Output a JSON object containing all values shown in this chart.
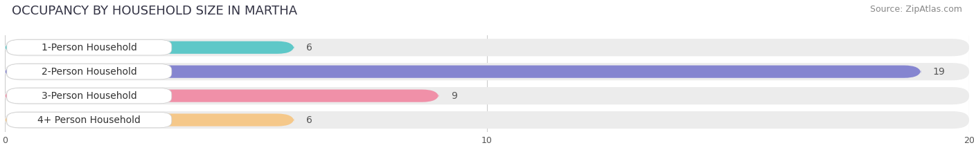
{
  "title": "OCCUPANCY BY HOUSEHOLD SIZE IN MARTHA",
  "source": "Source: ZipAtlas.com",
  "categories": [
    "1-Person Household",
    "2-Person Household",
    "3-Person Household",
    "4+ Person Household"
  ],
  "values": [
    6,
    19,
    9,
    6
  ],
  "bar_colors": [
    "#5ec8c8",
    "#8585d0",
    "#f090a8",
    "#f5c88a"
  ],
  "bar_bg_colors": [
    "#ececec",
    "#ececec",
    "#ececec",
    "#ececec"
  ],
  "xlim": [
    0,
    20
  ],
  "xticks": [
    0,
    10,
    20
  ],
  "title_fontsize": 13,
  "source_fontsize": 9,
  "bar_label_fontsize": 10,
  "category_fontsize": 10,
  "figsize": [
    14.06,
    2.33
  ],
  "dpi": 100
}
